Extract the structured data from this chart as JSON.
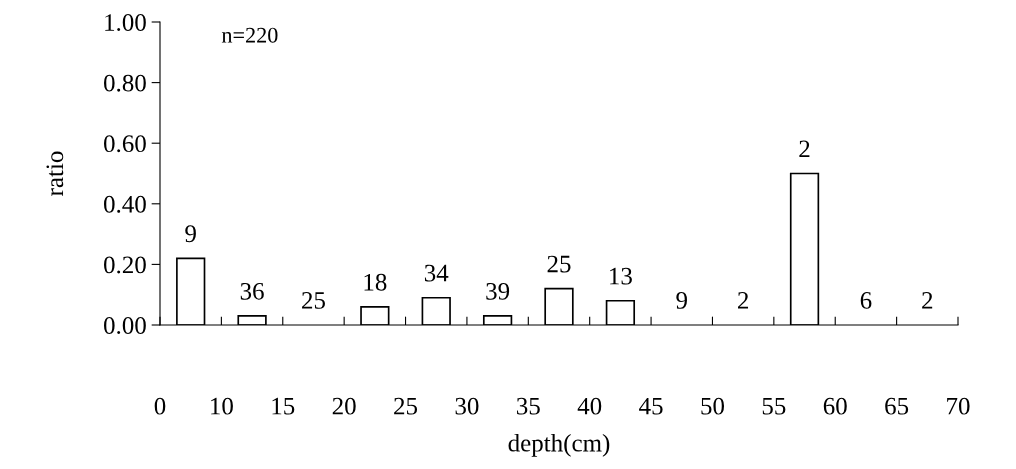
{
  "chart_data": {
    "type": "bar",
    "xlabel": "depth(cm)",
    "ylabel": "ratio",
    "categories": [
      null,
      null,
      null,
      null,
      null,
      null,
      null,
      null,
      null,
      null,
      null,
      null,
      null
    ],
    "values": [
      0.22,
      0.03,
      0,
      0.06,
      0.09,
      0.03,
      0.12,
      0.08,
      0,
      0,
      0.5,
      0,
      0
    ],
    "color": "#ffffff",
    "ylim": [
      0,
      1
    ],
    "yticks": [
      {
        "value": 0,
        "label": "0.00"
      },
      {
        "value": 0.2,
        "label": "0.20"
      },
      {
        "value": 0.4,
        "label": "0.40"
      },
      {
        "value": 0.6,
        "label": "0.60"
      },
      {
        "value": 0.8,
        "label": "0.80"
      },
      {
        "value": 1,
        "label": "1.00"
      }
    ],
    "annotations": [
      "n=220",
      "0",
      "10",
      "15",
      "20",
      "25",
      "30",
      "35",
      "40",
      "45",
      "50",
      "55",
      "60",
      "65",
      "70",
      {
        "text": "9",
        "y": 0.22
      },
      {
        "text": "36",
        "y": 0.03
      },
      {
        "text": "25",
        "y": 0
      },
      {
        "text": "18",
        "y": 0.06
      },
      {
        "text": "34",
        "y": 0.09
      },
      {
        "text": "39",
        "y": 0.03
      },
      {
        "text": "25",
        "y": 0.12
      },
      {
        "text": "13",
        "y": 0.08
      },
      {
        "text": "9",
        "y": 0
      },
      {
        "text": "2",
        "y": 0
      },
      {
        "text": "2",
        "y": 0.5
      },
      {
        "text": "6",
        "y": 0
      },
      {
        "text": "2",
        "y": 0
      }
    ],
    "grid": false,
    "legend": false
  }
}
